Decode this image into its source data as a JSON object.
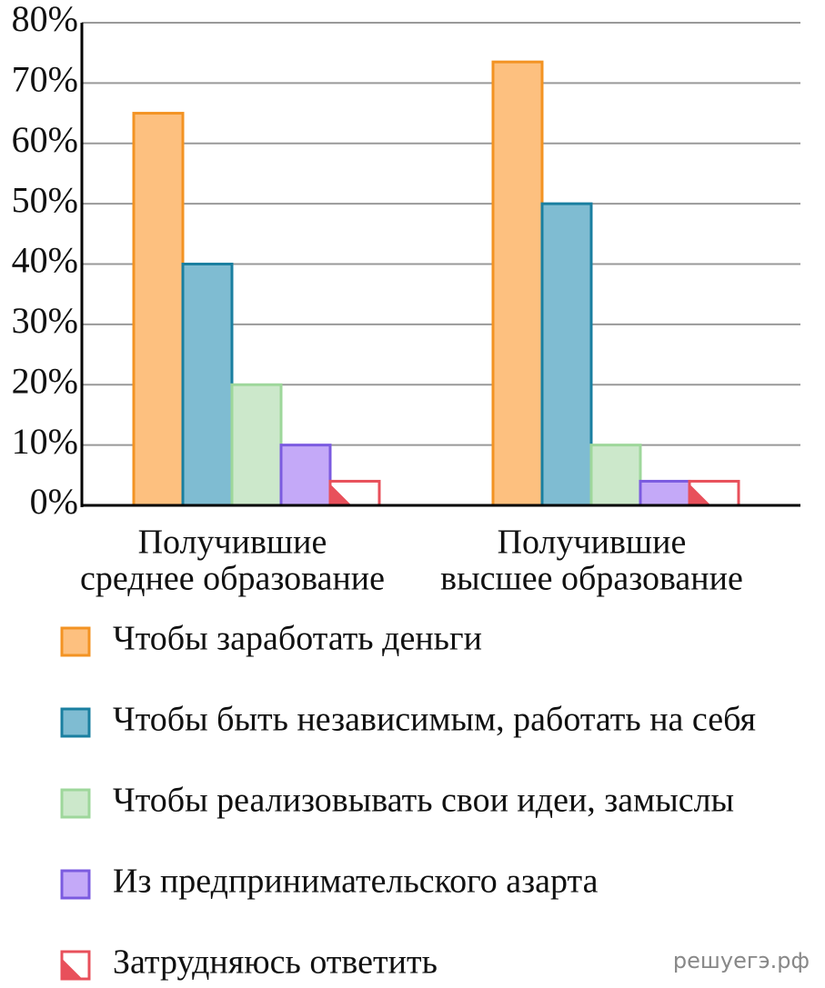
{
  "chart_data": {
    "type": "bar",
    "categories": [
      [
        "Получившие",
        "среднее образование"
      ],
      [
        "Получившие",
        "высшее образование"
      ]
    ],
    "series": [
      {
        "name": "Чтобы заработать деньги",
        "color": "#fdc07f",
        "edge_color": "#f39323",
        "values": [
          65,
          73.5
        ]
      },
      {
        "name": "Чтобы быть независимым, работать на себя",
        "color": "#7fbcd2",
        "edge_color": "#1a7fa0",
        "values": [
          40,
          50
        ]
      },
      {
        "name": "Чтобы реализовывать свои идеи, замыслы",
        "color": "#cce8cb",
        "edge_color": "#9ed79b",
        "values": [
          20,
          10
        ]
      },
      {
        "name": "Из предпринимательского азарта",
        "color": "#c4a9f8",
        "edge_color": "#7b5be0",
        "values": [
          10,
          4
        ]
      },
      {
        "name": "Затрудняюсь ответить",
        "color": "#ffffff",
        "edge_color": "#e8505b",
        "values": [
          4,
          4
        ]
      }
    ],
    "ylim": [
      0,
      80
    ],
    "yticks": [
      {
        "value": 0,
        "label": "0%"
      },
      {
        "value": 10,
        "label": "10%"
      },
      {
        "value": 20,
        "label": "20%"
      },
      {
        "value": 30,
        "label": "30%"
      },
      {
        "value": 40,
        "label": "40%"
      },
      {
        "value": 50,
        "label": "50%"
      },
      {
        "value": 60,
        "label": "60%"
      },
      {
        "value": 70,
        "label": "70%"
      },
      {
        "value": 80,
        "label": "80%"
      }
    ],
    "grid": true,
    "legend": "bottom",
    "watermark": "решуегэ.рф"
  }
}
